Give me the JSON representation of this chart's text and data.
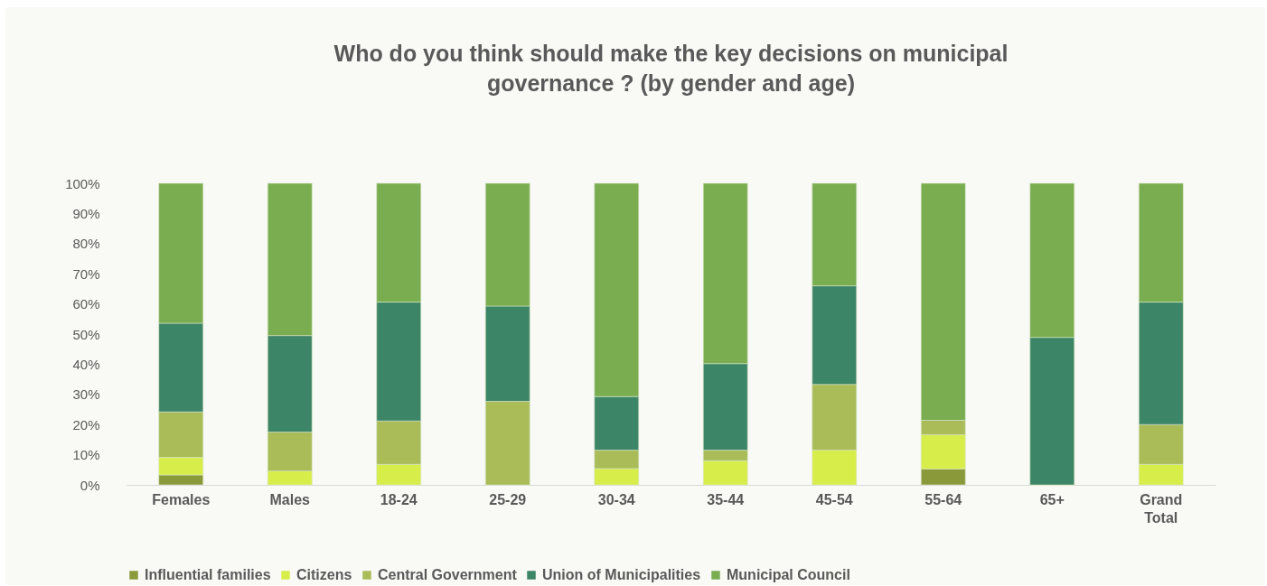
{
  "chart_data": {
    "type": "bar",
    "stacked": true,
    "title": "Who do you think should make the key decisions on municipal governance ? (by gender and age)",
    "categories": [
      "Females",
      "Males",
      "18-24",
      "25-29",
      "30-34",
      "35-44",
      "45-54",
      "55-64",
      "65+",
      "Grand Total"
    ],
    "series": [
      {
        "name": "Influential families",
        "color": "#8a9a3a",
        "values": [
          3.3,
          0,
          0,
          0,
          0,
          0,
          0,
          5.3,
          0,
          0
        ]
      },
      {
        "name": "Citizens",
        "color": "#d7ee4a",
        "values": [
          5.8,
          4.6,
          6.8,
          0,
          5.4,
          8.0,
          11.5,
          11.3,
          0,
          6.8
        ]
      },
      {
        "name": "Central Government",
        "color": "#a9bc58",
        "values": [
          15.1,
          12.9,
          14.4,
          27.7,
          6.1,
          3.5,
          21.8,
          4.8,
          0,
          13.2
        ]
      },
      {
        "name": "Union of Municipalities",
        "color": "#3c8566",
        "values": [
          29.4,
          32.0,
          39.4,
          31.6,
          17.8,
          28.7,
          32.7,
          0,
          48.9,
          40.6
        ]
      },
      {
        "name": "Municipal Council",
        "color": "#7aad50",
        "values": [
          46.4,
          50.5,
          39.4,
          40.7,
          70.7,
          59.8,
          34.0,
          78.6,
          51.1,
          39.4
        ]
      }
    ],
    "ylim": [
      0,
      100
    ],
    "yticks": [
      {
        "value": 0,
        "label": "0%"
      },
      {
        "value": 10,
        "label": "10%"
      },
      {
        "value": 20,
        "label": "20%"
      },
      {
        "value": 30,
        "label": "30%"
      },
      {
        "value": 40,
        "label": "40%"
      },
      {
        "value": 50,
        "label": "50%"
      },
      {
        "value": 60,
        "label": "60%"
      },
      {
        "value": 70,
        "label": "70%"
      },
      {
        "value": 80,
        "label": "80%"
      },
      {
        "value": 90,
        "label": "90%"
      },
      {
        "value": 100,
        "label": "100%"
      }
    ],
    "grid": false,
    "legend": "bottom"
  }
}
